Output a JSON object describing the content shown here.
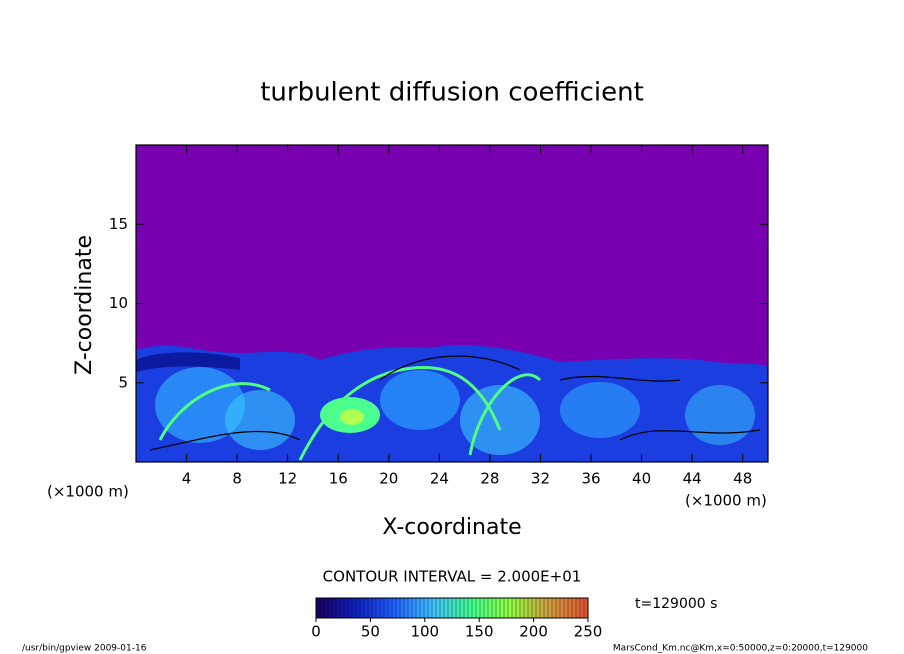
{
  "chart_data": {
    "type": "contour",
    "title": "turbulent diffusion coefficient",
    "x_label": "X-coordinate",
    "y_label": "Z-coordinate",
    "x_unit": "(×1000 m)",
    "y_unit": "(×1000 m)",
    "xlim": [
      0,
      50
    ],
    "xticks": [
      4,
      8,
      12,
      16,
      20,
      24,
      28,
      32,
      36,
      40,
      44,
      48
    ],
    "ylim": [
      0,
      20
    ],
    "yticks": [
      5,
      10,
      15
    ],
    "background_color": "#7800b0",
    "contour_interval": "CONTOUR INTERVAL = 2.000E+01",
    "colorbar": {
      "lim": [
        0,
        250
      ],
      "ticks": [
        0,
        50,
        100,
        150,
        200,
        250
      ],
      "colors": [
        "#1a0060",
        "#1020c0",
        "#2060ff",
        "#40c0ff",
        "#40ff90",
        "#90ff40",
        "#d0a040",
        "#e05030"
      ]
    },
    "time_label": "t=129000 s",
    "footer_left": "/usr/bin/gpview  2009-01-16",
    "footer_right": "MarsCond_Km.nc@Km,x=0:50000,z=0:20000,t=129000"
  }
}
